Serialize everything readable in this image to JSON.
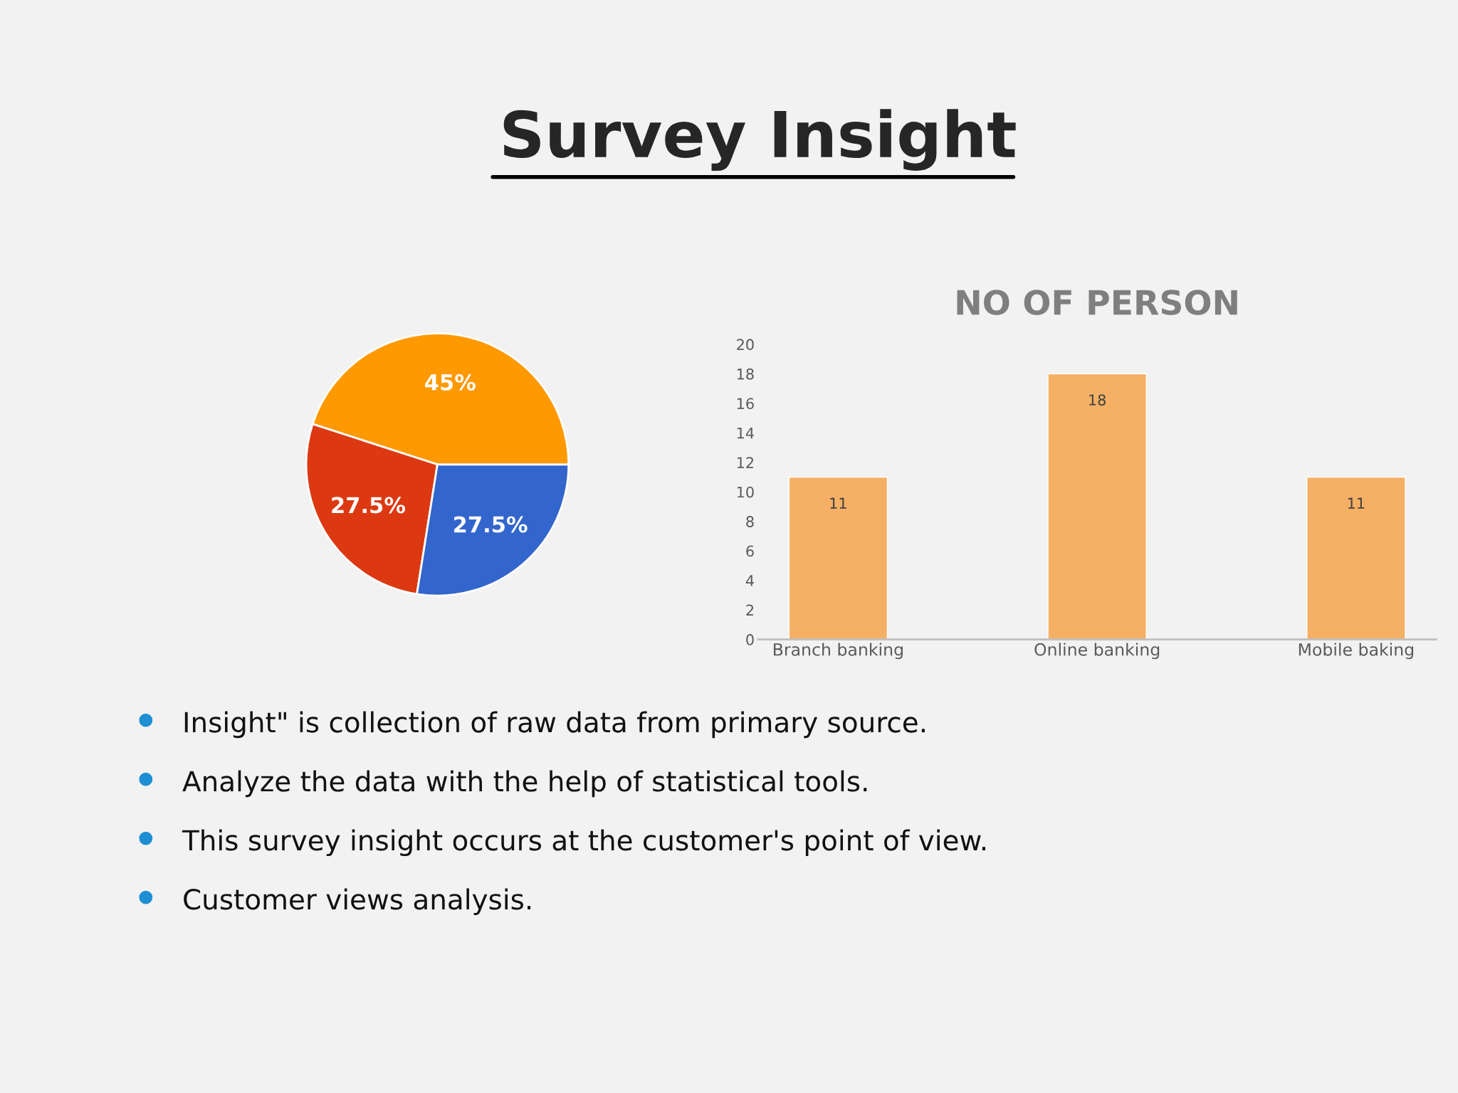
{
  "chart_data": [
    {
      "type": "pie",
      "title": "Survey Insight",
      "categories": [
        null,
        null,
        null
      ],
      "values": [
        45,
        27.5,
        27.5
      ],
      "colors": [
        "#ff9900",
        "#dc3912",
        "#3366cc"
      ],
      "value_labels": [
        "45%",
        "27.5%",
        "27.5%"
      ],
      "annotations": [
        "Insight\" is collection of raw data from primary source.",
        "Analyze the data with the help of statistical tools.",
        "This survey insight occurs at the customer's point of view.",
        "Customer views analysis."
      ]
    },
    {
      "type": "bar",
      "title": "NO OF PERSON",
      "categories": [
        "Branch banking",
        "Online banking",
        "Mobile baking"
      ],
      "values": [
        11,
        18,
        11
      ],
      "color": "#f5b065",
      "ylim": [
        0,
        20
      ],
      "yticks": [
        0,
        2,
        4,
        6,
        8,
        10,
        12,
        14,
        16,
        18,
        20
      ],
      "data_labels": true,
      "grid": false
    }
  ]
}
